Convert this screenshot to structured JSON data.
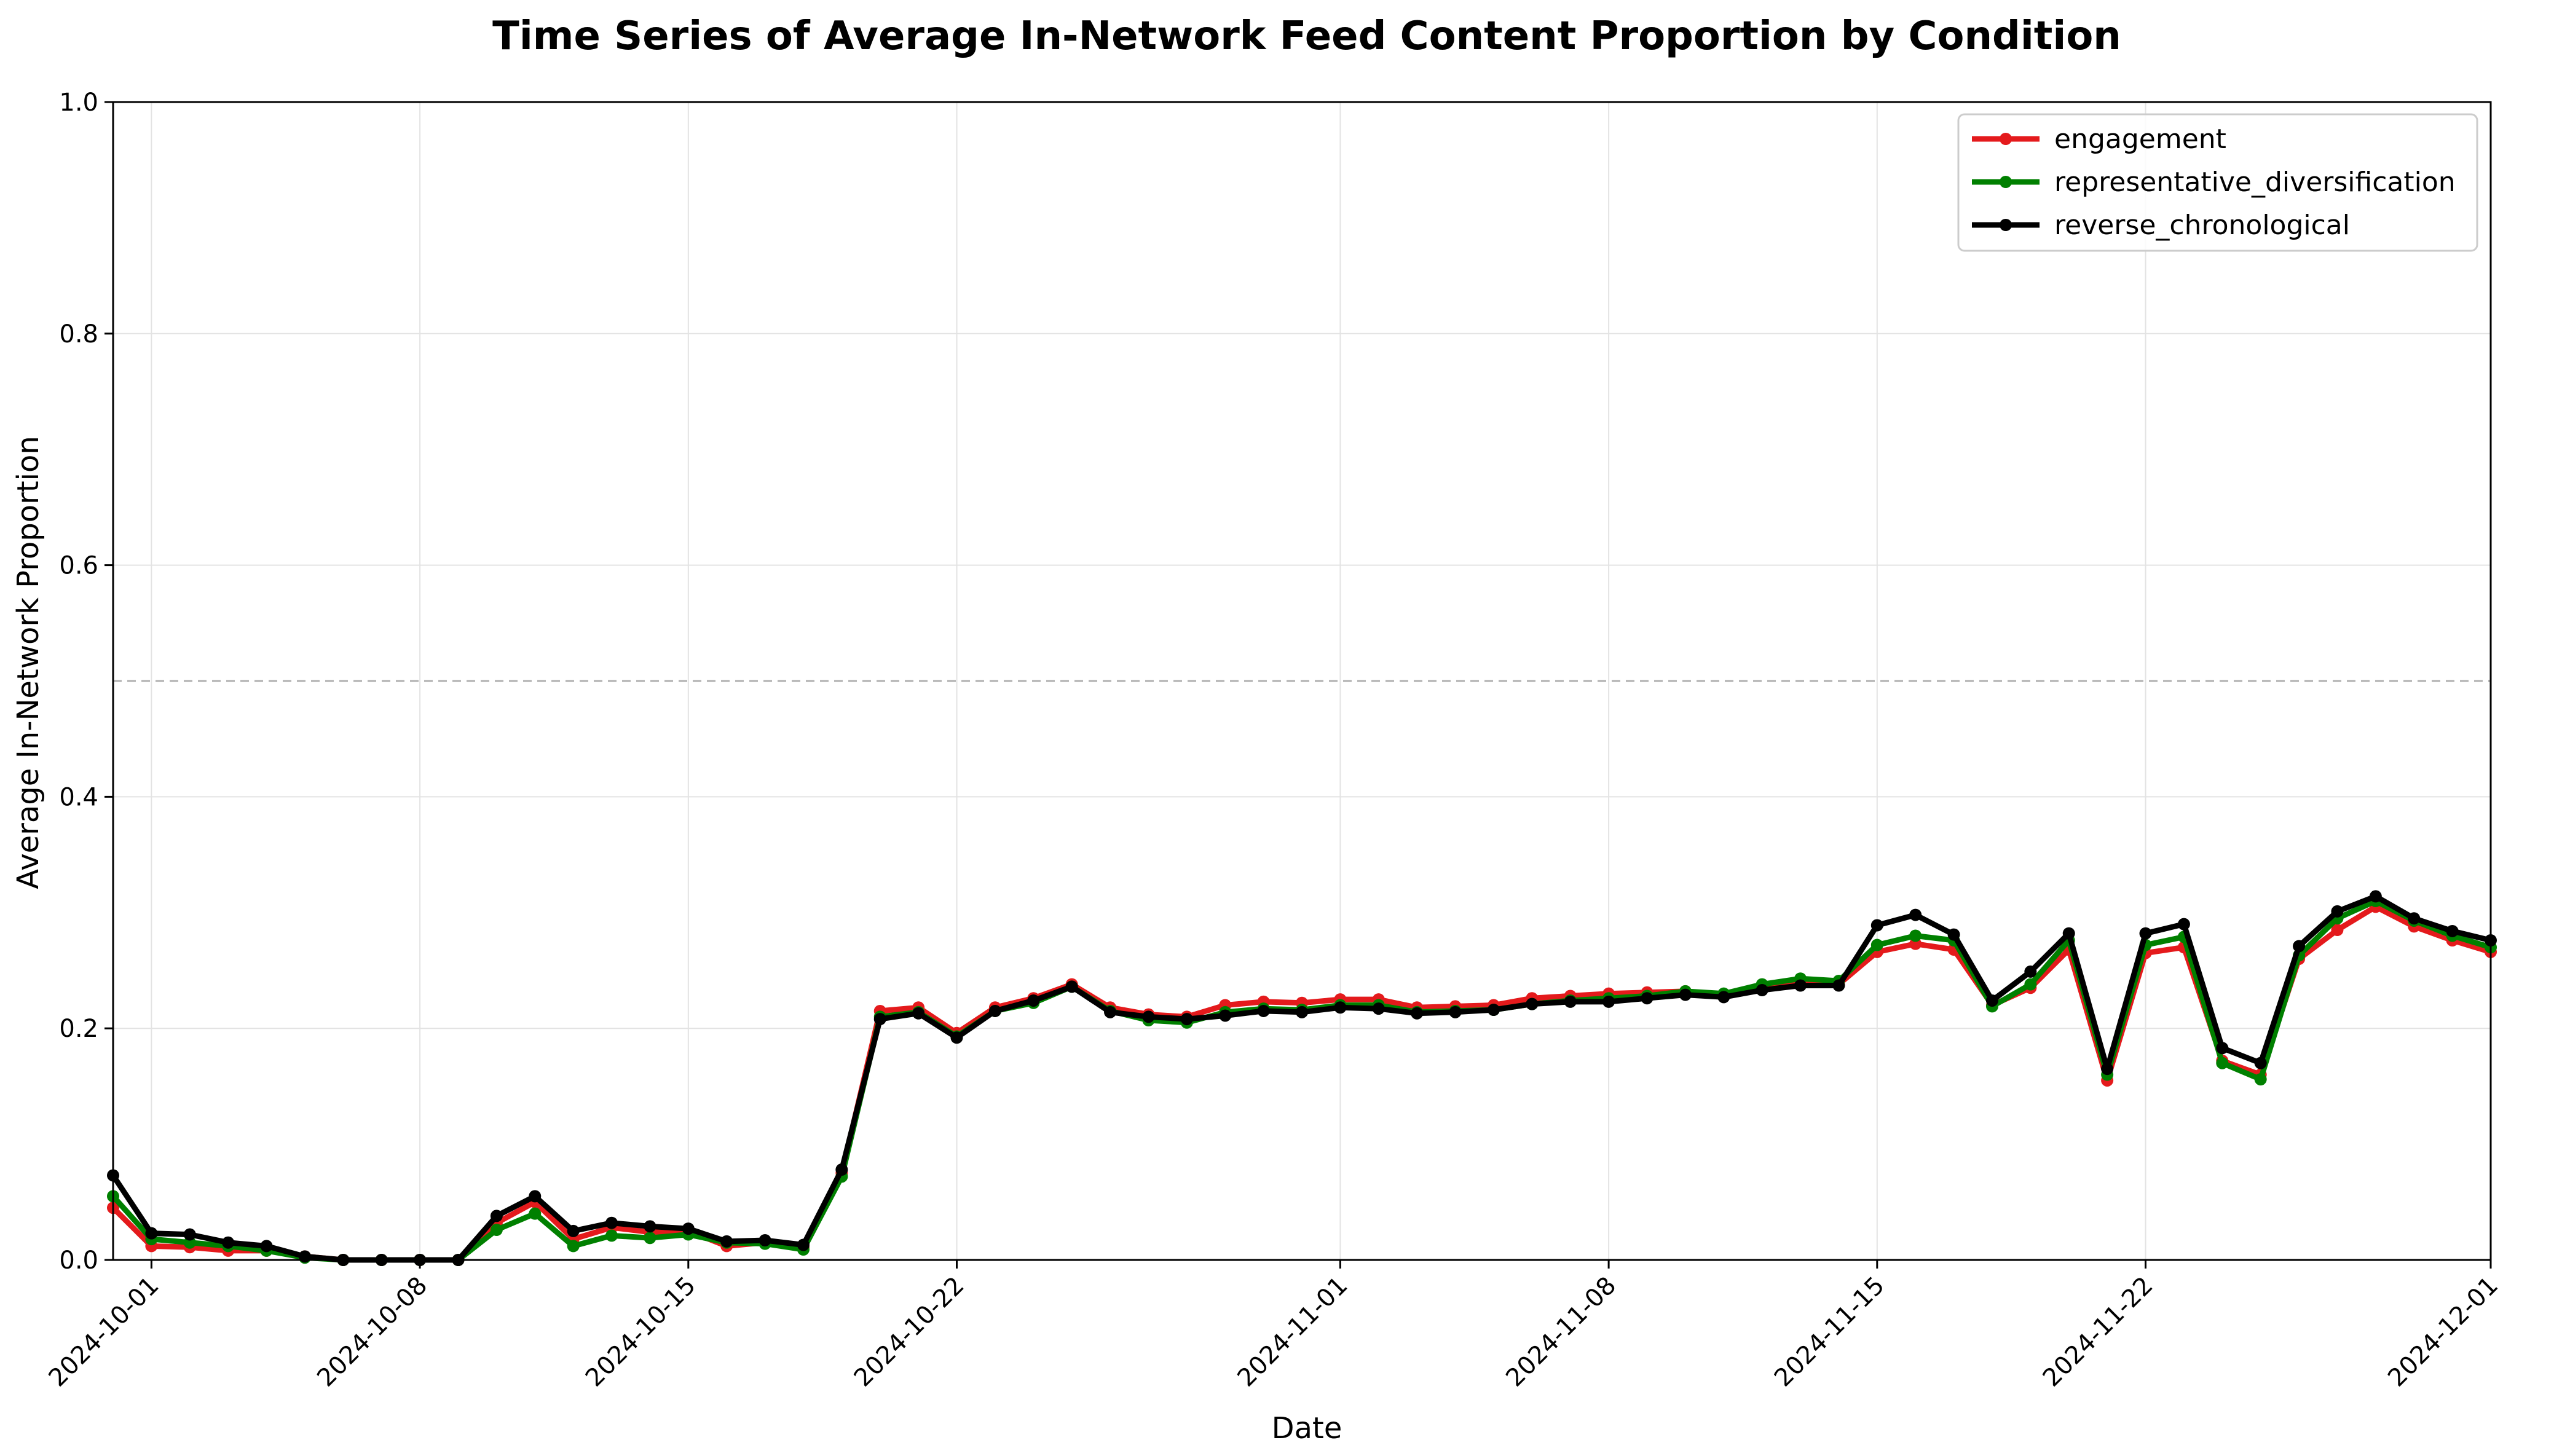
{
  "chart_data": {
    "type": "line",
    "title": "Time Series of Average In-Network Feed Content Proportion by Condition",
    "xlabel": "Date",
    "ylabel": "Average In-Network Proportion",
    "xlim": [
      "2024-09-30",
      "2024-12-01"
    ],
    "ylim": [
      0,
      1.0
    ],
    "yticks": [
      "0.0",
      "0.2",
      "0.4",
      "0.6",
      "0.8",
      "1.0"
    ],
    "xticks": [
      "2024-10-01",
      "2024-10-08",
      "2024-10-15",
      "2024-10-22",
      "2024-11-01",
      "2024-11-08",
      "2024-11-15",
      "2024-11-22",
      "2024-12-01"
    ],
    "grid": true,
    "reference_line": 0.5,
    "legend_position": "top-right",
    "x": [
      "2024-09-30",
      "2024-10-01",
      "2024-10-02",
      "2024-10-03",
      "2024-10-04",
      "2024-10-05",
      "2024-10-06",
      "2024-10-07",
      "2024-10-08",
      "2024-10-09",
      "2024-10-10",
      "2024-10-11",
      "2024-10-12",
      "2024-10-13",
      "2024-10-14",
      "2024-10-15",
      "2024-10-16",
      "2024-10-17",
      "2024-10-18",
      "2024-10-19",
      "2024-10-20",
      "2024-10-21",
      "2024-10-22",
      "2024-10-23",
      "2024-10-24",
      "2024-10-25",
      "2024-10-26",
      "2024-10-27",
      "2024-10-28",
      "2024-10-29",
      "2024-10-30",
      "2024-10-31",
      "2024-11-01",
      "2024-11-02",
      "2024-11-03",
      "2024-11-04",
      "2024-11-05",
      "2024-11-06",
      "2024-11-07",
      "2024-11-08",
      "2024-11-09",
      "2024-11-10",
      "2024-11-11",
      "2024-11-12",
      "2024-11-13",
      "2024-11-14",
      "2024-11-15",
      "2024-11-16",
      "2024-11-17",
      "2024-11-18",
      "2024-11-19",
      "2024-11-20",
      "2024-11-21",
      "2024-11-22",
      "2024-11-23",
      "2024-11-24",
      "2024-11-25",
      "2024-11-26",
      "2024-11-27",
      "2024-11-28",
      "2024-11-29",
      "2024-11-30",
      "2024-12-01"
    ],
    "series": [
      {
        "name": "engagement",
        "color": "#e41a1c",
        "values": [
          0.045,
          0.012,
          0.011,
          0.008,
          0.008,
          0.003,
          0.0,
          0.0,
          0.0,
          0.0,
          0.032,
          0.05,
          0.018,
          0.028,
          0.024,
          0.025,
          0.012,
          0.015,
          0.011,
          0.075,
          0.215,
          0.218,
          0.196,
          0.218,
          0.226,
          0.238,
          0.218,
          0.212,
          0.21,
          0.22,
          0.223,
          0.222,
          0.225,
          0.225,
          0.218,
          0.219,
          0.22,
          0.226,
          0.228,
          0.23,
          0.231,
          0.232,
          0.228,
          0.235,
          0.238,
          0.238,
          0.266,
          0.273,
          0.268,
          0.22,
          0.235,
          0.268,
          0.155,
          0.265,
          0.27,
          0.172,
          0.16,
          0.26,
          0.285,
          0.305,
          0.288,
          0.276,
          0.266
        ]
      },
      {
        "name": "representative_diversification",
        "color": "#008000",
        "values": [
          0.055,
          0.018,
          0.015,
          0.012,
          0.008,
          0.002,
          0.0,
          0.0,
          0.0,
          0.0,
          0.026,
          0.04,
          0.012,
          0.021,
          0.019,
          0.022,
          0.015,
          0.014,
          0.009,
          0.072,
          0.21,
          0.214,
          0.193,
          0.215,
          0.222,
          0.236,
          0.215,
          0.207,
          0.205,
          0.214,
          0.217,
          0.216,
          0.22,
          0.22,
          0.214,
          0.215,
          0.216,
          0.221,
          0.224,
          0.226,
          0.228,
          0.232,
          0.23,
          0.238,
          0.243,
          0.241,
          0.272,
          0.28,
          0.276,
          0.219,
          0.238,
          0.276,
          0.16,
          0.272,
          0.279,
          0.17,
          0.156,
          0.263,
          0.295,
          0.31,
          0.293,
          0.28,
          0.27
        ]
      },
      {
        "name": "reverse_chronological",
        "color": "#000000",
        "values": [
          0.073,
          0.023,
          0.022,
          0.015,
          0.012,
          0.003,
          0.0,
          0.0,
          0.0,
          0.0,
          0.038,
          0.055,
          0.025,
          0.032,
          0.029,
          0.027,
          0.016,
          0.017,
          0.013,
          0.078,
          0.208,
          0.213,
          0.192,
          0.215,
          0.224,
          0.236,
          0.214,
          0.21,
          0.208,
          0.211,
          0.215,
          0.214,
          0.218,
          0.217,
          0.213,
          0.214,
          0.216,
          0.221,
          0.223,
          0.223,
          0.226,
          0.229,
          0.227,
          0.233,
          0.237,
          0.237,
          0.289,
          0.298,
          0.281,
          0.224,
          0.249,
          0.282,
          0.165,
          0.282,
          0.29,
          0.183,
          0.17,
          0.271,
          0.301,
          0.314,
          0.295,
          0.284,
          0.276
        ]
      }
    ]
  }
}
